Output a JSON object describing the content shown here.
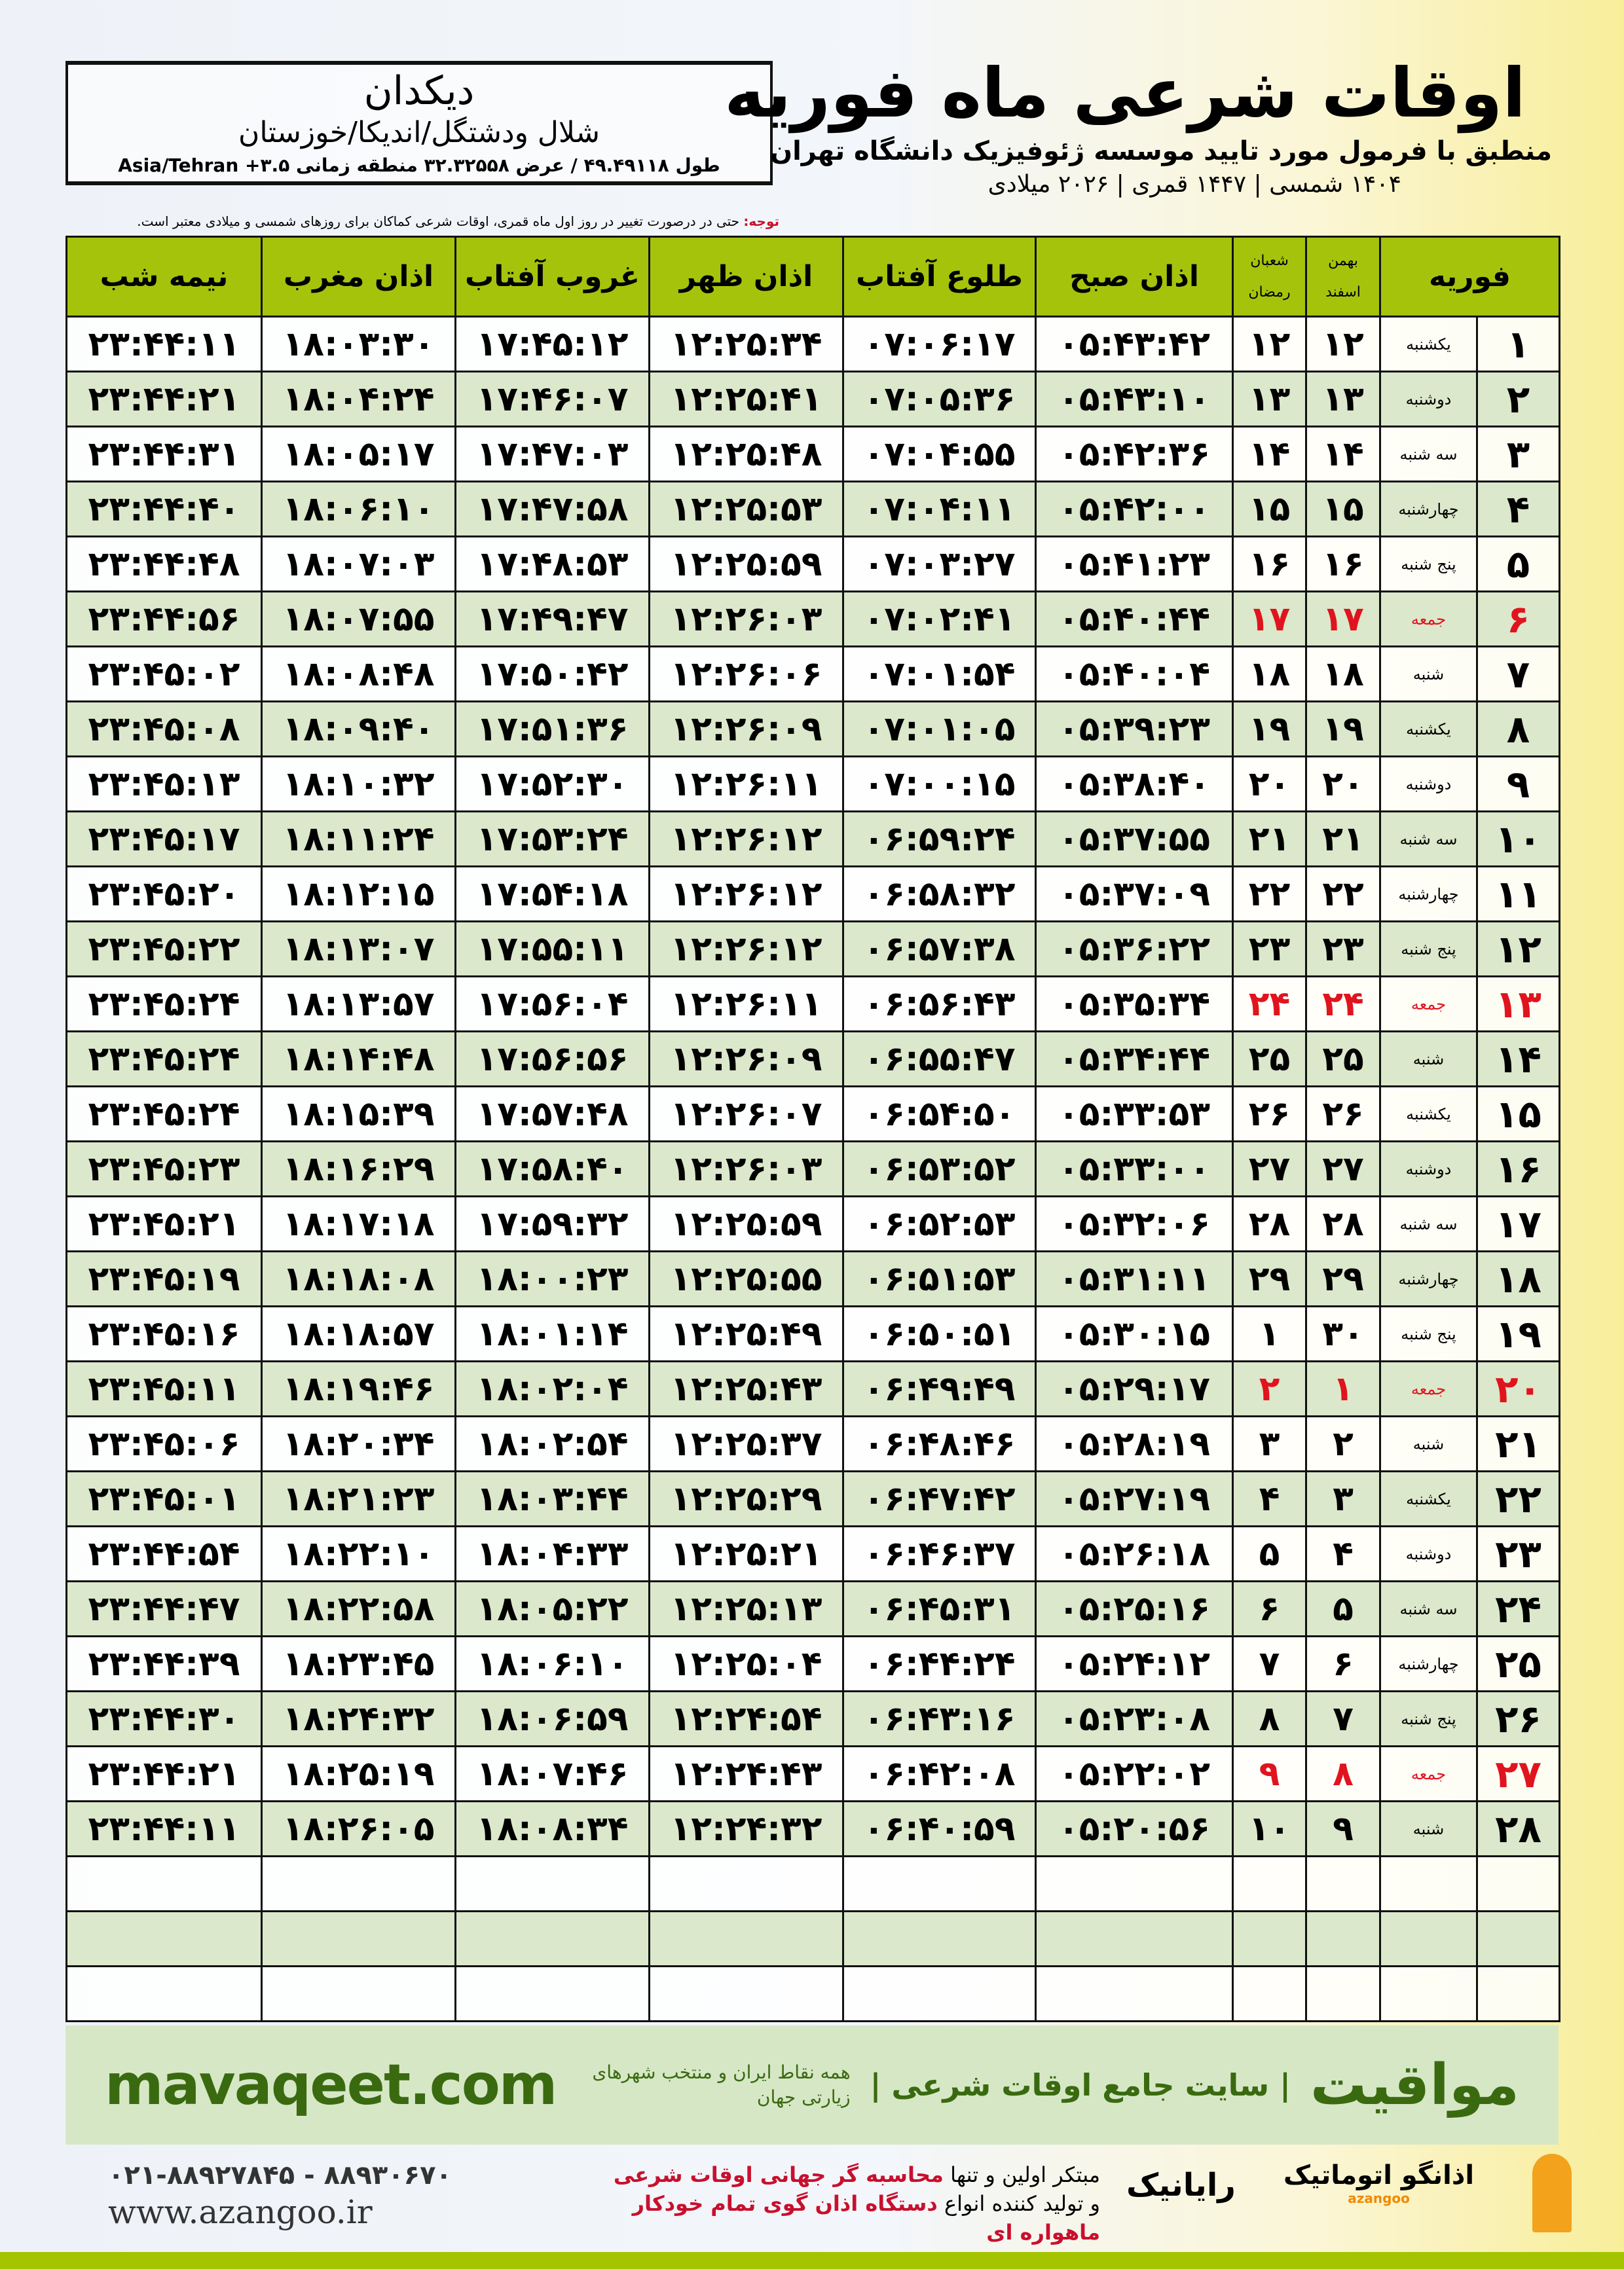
{
  "header": {
    "title": "اوقات شرعی ماه فوریه",
    "subtitle": "منطبق با فرمول مورد تایید موسسه ژئوفیزیک دانشگاه تهران",
    "dates": "۱۴۰۴ شمسی | ۱۴۴۷ قمری | ۲۰۲۶ میلادی",
    "note_label": "توجه:",
    "note": " حتی در درصورت تغییر در روز اول ماه قمری، اوقات شرعی کماکان برای روزهای شمسی و میلادی معتبر است."
  },
  "location": {
    "city": "دیکدان",
    "region": "شلال ودشتگل/اندیکا/خوزستان",
    "coords": "طول ۴۹.۴۹۱۱۸ / عرض ۳۲.۳۲۵۵۸ منطقه زمانی ۳.۵+ Asia/Tehran"
  },
  "columns": {
    "month": "فوریه",
    "bahman": "بهمن",
    "esfand": "اسفند",
    "shaban": "شعبان",
    "ramadan": "رمضان",
    "fajr": "اذان صبح",
    "sunrise": "طلوع آفتاب",
    "dhuhr": "اذان ظهر",
    "sunset": "غروب آفتاب",
    "maghrib": "اذان مغرب",
    "midnight": "نیمه شب"
  },
  "colors": {
    "header": "#a6c30c",
    "alt_row": "#dbe8cb",
    "friday": "#e0141e",
    "brand": "#3a6a10"
  },
  "rows": [
    {
      "day": "۱",
      "weekday": "یکشنبه",
      "solar": "۱۲",
      "lunar": "۱۲",
      "fajr": "۰۵:۴۳:۴۲",
      "sunrise": "۰۷:۰۶:۱۷",
      "dhuhr": "۱۲:۲۵:۳۴",
      "sunset": "۱۷:۴۵:۱۲",
      "maghrib": "۱۸:۰۳:۳۰",
      "midnight": "۲۳:۴۴:۱۱"
    },
    {
      "day": "۲",
      "weekday": "دوشنبه",
      "solar": "۱۳",
      "lunar": "۱۳",
      "fajr": "۰۵:۴۳:۱۰",
      "sunrise": "۰۷:۰۵:۳۶",
      "dhuhr": "۱۲:۲۵:۴۱",
      "sunset": "۱۷:۴۶:۰۷",
      "maghrib": "۱۸:۰۴:۲۴",
      "midnight": "۲۳:۴۴:۲۱"
    },
    {
      "day": "۳",
      "weekday": "سه شنبه",
      "solar": "۱۴",
      "lunar": "۱۴",
      "fajr": "۰۵:۴۲:۳۶",
      "sunrise": "۰۷:۰۴:۵۵",
      "dhuhr": "۱۲:۲۵:۴۸",
      "sunset": "۱۷:۴۷:۰۳",
      "maghrib": "۱۸:۰۵:۱۷",
      "midnight": "۲۳:۴۴:۳۱"
    },
    {
      "day": "۴",
      "weekday": "چهارشنبه",
      "solar": "۱۵",
      "lunar": "۱۵",
      "fajr": "۰۵:۴۲:۰۰",
      "sunrise": "۰۷:۰۴:۱۱",
      "dhuhr": "۱۲:۲۵:۵۳",
      "sunset": "۱۷:۴۷:۵۸",
      "maghrib": "۱۸:۰۶:۱۰",
      "midnight": "۲۳:۴۴:۴۰"
    },
    {
      "day": "۵",
      "weekday": "پنج شنبه",
      "solar": "۱۶",
      "lunar": "۱۶",
      "fajr": "۰۵:۴۱:۲۳",
      "sunrise": "۰۷:۰۳:۲۷",
      "dhuhr": "۱۲:۲۵:۵۹",
      "sunset": "۱۷:۴۸:۵۳",
      "maghrib": "۱۸:۰۷:۰۳",
      "midnight": "۲۳:۴۴:۴۸"
    },
    {
      "day": "۶",
      "weekday": "جمعه",
      "solar": "۱۷",
      "lunar": "۱۷",
      "fajr": "۰۵:۴۰:۴۴",
      "sunrise": "۰۷:۰۲:۴۱",
      "dhuhr": "۱۲:۲۶:۰۳",
      "sunset": "۱۷:۴۹:۴۷",
      "maghrib": "۱۸:۰۷:۵۵",
      "midnight": "۲۳:۴۴:۵۶",
      "friday": true
    },
    {
      "day": "۷",
      "weekday": "شنبه",
      "solar": "۱۸",
      "lunar": "۱۸",
      "fajr": "۰۵:۴۰:۰۴",
      "sunrise": "۰۷:۰۱:۵۴",
      "dhuhr": "۱۲:۲۶:۰۶",
      "sunset": "۱۷:۵۰:۴۲",
      "maghrib": "۱۸:۰۸:۴۸",
      "midnight": "۲۳:۴۵:۰۲"
    },
    {
      "day": "۸",
      "weekday": "یکشنبه",
      "solar": "۱۹",
      "lunar": "۱۹",
      "fajr": "۰۵:۳۹:۲۳",
      "sunrise": "۰۷:۰۱:۰۵",
      "dhuhr": "۱۲:۲۶:۰۹",
      "sunset": "۱۷:۵۱:۳۶",
      "maghrib": "۱۸:۰۹:۴۰",
      "midnight": "۲۳:۴۵:۰۸"
    },
    {
      "day": "۹",
      "weekday": "دوشنبه",
      "solar": "۲۰",
      "lunar": "۲۰",
      "fajr": "۰۵:۳۸:۴۰",
      "sunrise": "۰۷:۰۰:۱۵",
      "dhuhr": "۱۲:۲۶:۱۱",
      "sunset": "۱۷:۵۲:۳۰",
      "maghrib": "۱۸:۱۰:۳۲",
      "midnight": "۲۳:۴۵:۱۳"
    },
    {
      "day": "۱۰",
      "weekday": "سه شنبه",
      "solar": "۲۱",
      "lunar": "۲۱",
      "fajr": "۰۵:۳۷:۵۵",
      "sunrise": "۰۶:۵۹:۲۴",
      "dhuhr": "۱۲:۲۶:۱۲",
      "sunset": "۱۷:۵۳:۲۴",
      "maghrib": "۱۸:۱۱:۲۴",
      "midnight": "۲۳:۴۵:۱۷"
    },
    {
      "day": "۱۱",
      "weekday": "چهارشنبه",
      "solar": "۲۲",
      "lunar": "۲۲",
      "fajr": "۰۵:۳۷:۰۹",
      "sunrise": "۰۶:۵۸:۳۲",
      "dhuhr": "۱۲:۲۶:۱۲",
      "sunset": "۱۷:۵۴:۱۸",
      "maghrib": "۱۸:۱۲:۱۵",
      "midnight": "۲۳:۴۵:۲۰"
    },
    {
      "day": "۱۲",
      "weekday": "پنج شنبه",
      "solar": "۲۳",
      "lunar": "۲۳",
      "fajr": "۰۵:۳۶:۲۲",
      "sunrise": "۰۶:۵۷:۳۸",
      "dhuhr": "۱۲:۲۶:۱۲",
      "sunset": "۱۷:۵۵:۱۱",
      "maghrib": "۱۸:۱۳:۰۷",
      "midnight": "۲۳:۴۵:۲۲"
    },
    {
      "day": "۱۳",
      "weekday": "جمعه",
      "solar": "۲۴",
      "lunar": "۲۴",
      "fajr": "۰۵:۳۵:۳۴",
      "sunrise": "۰۶:۵۶:۴۳",
      "dhuhr": "۱۲:۲۶:۱۱",
      "sunset": "۱۷:۵۶:۰۴",
      "maghrib": "۱۸:۱۳:۵۷",
      "midnight": "۲۳:۴۵:۲۴",
      "friday": true
    },
    {
      "day": "۱۴",
      "weekday": "شنبه",
      "solar": "۲۵",
      "lunar": "۲۵",
      "fajr": "۰۵:۳۴:۴۴",
      "sunrise": "۰۶:۵۵:۴۷",
      "dhuhr": "۱۲:۲۶:۰۹",
      "sunset": "۱۷:۵۶:۵۶",
      "maghrib": "۱۸:۱۴:۴۸",
      "midnight": "۲۳:۴۵:۲۴"
    },
    {
      "day": "۱۵",
      "weekday": "یکشنبه",
      "solar": "۲۶",
      "lunar": "۲۶",
      "fajr": "۰۵:۳۳:۵۳",
      "sunrise": "۰۶:۵۴:۵۰",
      "dhuhr": "۱۲:۲۶:۰۷",
      "sunset": "۱۷:۵۷:۴۸",
      "maghrib": "۱۸:۱۵:۳۹",
      "midnight": "۲۳:۴۵:۲۴"
    },
    {
      "day": "۱۶",
      "weekday": "دوشنبه",
      "solar": "۲۷",
      "lunar": "۲۷",
      "fajr": "۰۵:۳۳:۰۰",
      "sunrise": "۰۶:۵۳:۵۲",
      "dhuhr": "۱۲:۲۶:۰۳",
      "sunset": "۱۷:۵۸:۴۰",
      "maghrib": "۱۸:۱۶:۲۹",
      "midnight": "۲۳:۴۵:۲۳"
    },
    {
      "day": "۱۷",
      "weekday": "سه شنبه",
      "solar": "۲۸",
      "lunar": "۲۸",
      "fajr": "۰۵:۳۲:۰۶",
      "sunrise": "۰۶:۵۲:۵۳",
      "dhuhr": "۱۲:۲۵:۵۹",
      "sunset": "۱۷:۵۹:۳۲",
      "maghrib": "۱۸:۱۷:۱۸",
      "midnight": "۲۳:۴۵:۲۱"
    },
    {
      "day": "۱۸",
      "weekday": "چهارشنبه",
      "solar": "۲۹",
      "lunar": "۲۹",
      "fajr": "۰۵:۳۱:۱۱",
      "sunrise": "۰۶:۵۱:۵۳",
      "dhuhr": "۱۲:۲۵:۵۵",
      "sunset": "۱۸:۰۰:۲۳",
      "maghrib": "۱۸:۱۸:۰۸",
      "midnight": "۲۳:۴۵:۱۹"
    },
    {
      "day": "۱۹",
      "weekday": "پنج شنبه",
      "solar": "۳۰",
      "lunar": "۱",
      "fajr": "۰۵:۳۰:۱۵",
      "sunrise": "۰۶:۵۰:۵۱",
      "dhuhr": "۱۲:۲۵:۴۹",
      "sunset": "۱۸:۰۱:۱۴",
      "maghrib": "۱۸:۱۸:۵۷",
      "midnight": "۲۳:۴۵:۱۶"
    },
    {
      "day": "۲۰",
      "weekday": "جمعه",
      "solar": "۱",
      "lunar": "۲",
      "fajr": "۰۵:۲۹:۱۷",
      "sunrise": "۰۶:۴۹:۴۹",
      "dhuhr": "۱۲:۲۵:۴۳",
      "sunset": "۱۸:۰۲:۰۴",
      "maghrib": "۱۸:۱۹:۴۶",
      "midnight": "۲۳:۴۵:۱۱",
      "friday": true
    },
    {
      "day": "۲۱",
      "weekday": "شنبه",
      "solar": "۲",
      "lunar": "۳",
      "fajr": "۰۵:۲۸:۱۹",
      "sunrise": "۰۶:۴۸:۴۶",
      "dhuhr": "۱۲:۲۵:۳۷",
      "sunset": "۱۸:۰۲:۵۴",
      "maghrib": "۱۸:۲۰:۳۴",
      "midnight": "۲۳:۴۵:۰۶"
    },
    {
      "day": "۲۲",
      "weekday": "یکشنبه",
      "solar": "۳",
      "lunar": "۴",
      "fajr": "۰۵:۲۷:۱۹",
      "sunrise": "۰۶:۴۷:۴۲",
      "dhuhr": "۱۲:۲۵:۲۹",
      "sunset": "۱۸:۰۳:۴۴",
      "maghrib": "۱۸:۲۱:۲۳",
      "midnight": "۲۳:۴۵:۰۱"
    },
    {
      "day": "۲۳",
      "weekday": "دوشنبه",
      "solar": "۴",
      "lunar": "۵",
      "fajr": "۰۵:۲۶:۱۸",
      "sunrise": "۰۶:۴۶:۳۷",
      "dhuhr": "۱۲:۲۵:۲۱",
      "sunset": "۱۸:۰۴:۳۳",
      "maghrib": "۱۸:۲۲:۱۰",
      "midnight": "۲۳:۴۴:۵۴"
    },
    {
      "day": "۲۴",
      "weekday": "سه شنبه",
      "solar": "۵",
      "lunar": "۶",
      "fajr": "۰۵:۲۵:۱۶",
      "sunrise": "۰۶:۴۵:۳۱",
      "dhuhr": "۱۲:۲۵:۱۳",
      "sunset": "۱۸:۰۵:۲۲",
      "maghrib": "۱۸:۲۲:۵۸",
      "midnight": "۲۳:۴۴:۴۷"
    },
    {
      "day": "۲۵",
      "weekday": "چهارشنبه",
      "solar": "۶",
      "lunar": "۷",
      "fajr": "۰۵:۲۴:۱۲",
      "sunrise": "۰۶:۴۴:۲۴",
      "dhuhr": "۱۲:۲۵:۰۴",
      "sunset": "۱۸:۰۶:۱۰",
      "maghrib": "۱۸:۲۳:۴۵",
      "midnight": "۲۳:۴۴:۳۹"
    },
    {
      "day": "۲۶",
      "weekday": "پنج شنبه",
      "solar": "۷",
      "lunar": "۸",
      "fajr": "۰۵:۲۳:۰۸",
      "sunrise": "۰۶:۴۳:۱۶",
      "dhuhr": "۱۲:۲۴:۵۴",
      "sunset": "۱۸:۰۶:۵۹",
      "maghrib": "۱۸:۲۴:۳۲",
      "midnight": "۲۳:۴۴:۳۰"
    },
    {
      "day": "۲۷",
      "weekday": "جمعه",
      "solar": "۸",
      "lunar": "۹",
      "fajr": "۰۵:۲۲:۰۲",
      "sunrise": "۰۶:۴۲:۰۸",
      "dhuhr": "۱۲:۲۴:۴۳",
      "sunset": "۱۸:۰۷:۴۶",
      "maghrib": "۱۸:۲۵:۱۹",
      "midnight": "۲۳:۴۴:۲۱",
      "friday": true
    },
    {
      "day": "۲۸",
      "weekday": "شنبه",
      "solar": "۹",
      "lunar": "۱۰",
      "fajr": "۰۵:۲۰:۵۶",
      "sunrise": "۰۶:۴۰:۵۹",
      "dhuhr": "۱۲:۲۴:۳۲",
      "sunset": "۱۸:۰۸:۳۴",
      "maghrib": "۱۸:۲۶:۰۵",
      "midnight": "۲۳:۴۴:۱۱"
    }
  ],
  "footer": {
    "brand": "مواقیت",
    "slogan": "| سایت جامع اوقات شرعی |",
    "slogan2": "همه نقاط ایران و منتخب شهرهای زیارتی جهان",
    "site": "mavaqeet.com",
    "phone": "۰۲۱-۸۸۹۲۷۸۴۵ - ۸۸۹۳۰۶۷۰",
    "web": "www.azangoo.ir",
    "ad_line1_a": "مبتکر اولین و تنها ",
    "ad_line1_b": "محاسبه گر جهانی اوقات شرعی",
    "ad_line2_a": "و تولید کننده انواع ",
    "ad_line2_b": "دستگاه اذان گوی تمام خودکار ماهواره ای",
    "rayanik": "رایانیک",
    "azangoo": "اذانگو اتوماتیک",
    "azangoo_latin": "azangoo"
  }
}
